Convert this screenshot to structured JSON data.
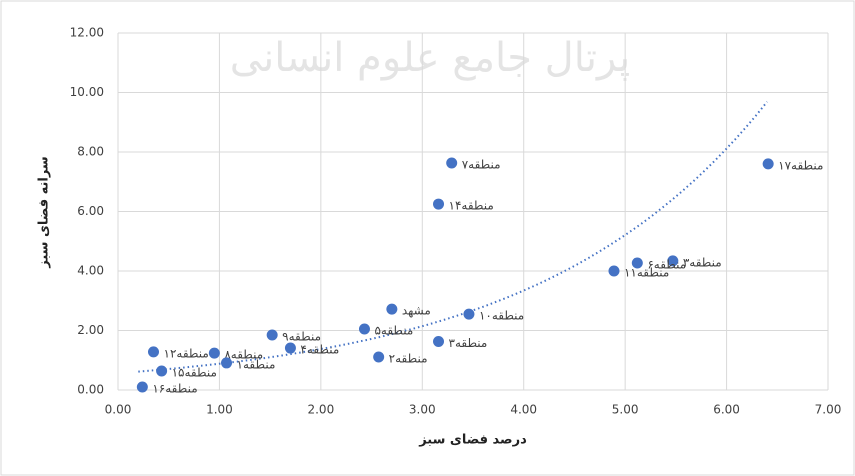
{
  "chart_data": {
    "type": "scatter",
    "x_label": "درصد فضای سبز",
    "y_label": "سرانه فضای سبز",
    "watermark": "پرتال جامع علوم انسانی",
    "point_labels": [
      "منطقه۱۷",
      "منطقه۷",
      "منطقه۱۴",
      "منطقه۳",
      "منطقه۶",
      "منطقه۱۱",
      "مشهد",
      "منطقه۱۰",
      "منطقه۵",
      "منطقه۳",
      "منطقه۲",
      "منطقه۹",
      "منطقه۴",
      "منطقه۸",
      "منطقه۱",
      "منطقه۱۲",
      "منطقه۱۵",
      "منطقه۱۶"
    ],
    "x": [
      6.41,
      3.29,
      3.16,
      5.47,
      5.12,
      4.89,
      2.7,
      3.46,
      2.43,
      3.16,
      2.57,
      1.52,
      1.7,
      0.95,
      1.07,
      0.35,
      0.43,
      0.24
    ],
    "values": [
      7.6,
      7.63,
      6.25,
      4.34,
      4.27,
      4.0,
      2.72,
      2.55,
      2.05,
      1.63,
      1.11,
      1.85,
      1.41,
      1.24,
      0.91,
      1.28,
      0.64,
      0.1
    ],
    "color": "#4472c4",
    "trendline": {
      "type": "exponential",
      "a": 0.567,
      "b": 0.4435,
      "x_range": [
        0.2,
        6.4
      ],
      "color": "#4472c4"
    },
    "xlim": [
      0,
      7
    ],
    "xticks": [
      {
        "value": 0,
        "label": "0.00"
      },
      {
        "value": 1,
        "label": "1.00"
      },
      {
        "value": 2,
        "label": "2.00"
      },
      {
        "value": 3,
        "label": "3.00"
      },
      {
        "value": 4,
        "label": "4.00"
      },
      {
        "value": 5,
        "label": "5.00"
      },
      {
        "value": 6,
        "label": "6.00"
      },
      {
        "value": 7,
        "label": "7.00"
      }
    ],
    "ylim": [
      0,
      12
    ],
    "yticks": [
      {
        "value": 0,
        "label": "0.00"
      },
      {
        "value": 2,
        "label": "2.00"
      },
      {
        "value": 4,
        "label": "4.00"
      },
      {
        "value": 6,
        "label": "6.00"
      },
      {
        "value": 8,
        "label": "8.00"
      },
      {
        "value": 10,
        "label": "10.00"
      },
      {
        "value": 12,
        "label": "12.00"
      }
    ],
    "grid": true
  }
}
